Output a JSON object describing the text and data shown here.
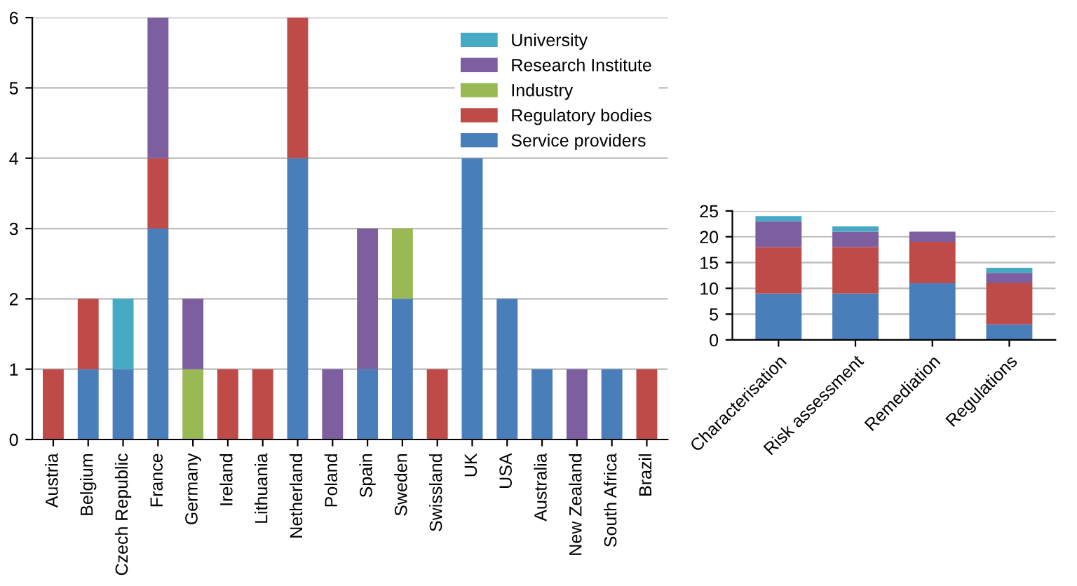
{
  "chart_data": [
    {
      "type": "bar",
      "stacked": true,
      "categories": [
        "Austria",
        "Belgium",
        "Czech Republic",
        "France",
        "Germany",
        "Ireland",
        "Lithuania",
        "Netherland",
        "Poland",
        "Spain",
        "Sweden",
        "Swissland",
        "UK",
        "USA",
        "Australia",
        "New Zealand",
        "South Africa",
        "Brazil"
      ],
      "series": [
        {
          "name": "Service providers",
          "color": "#4a7ebb",
          "values": [
            0,
            1,
            1,
            3,
            0,
            0,
            0,
            4,
            0,
            1,
            2,
            0,
            4,
            2,
            1,
            0,
            1,
            0
          ]
        },
        {
          "name": "Regulatory bodies",
          "color": "#be4b48",
          "values": [
            1,
            1,
            0,
            1,
            0,
            1,
            1,
            2,
            0,
            0,
            0,
            1,
            0,
            0,
            0,
            0,
            0,
            1
          ]
        },
        {
          "name": "Industry",
          "color": "#98b954",
          "values": [
            0,
            0,
            0,
            0,
            1,
            0,
            0,
            0,
            0,
            0,
            1,
            0,
            0,
            0,
            0,
            0,
            0,
            0
          ]
        },
        {
          "name": "Research Institute",
          "color": "#7d5fa0",
          "values": [
            0,
            0,
            0,
            2,
            1,
            0,
            0,
            0,
            1,
            2,
            0,
            0,
            0,
            0,
            0,
            1,
            0,
            0
          ]
        },
        {
          "name": "University",
          "color": "#46aac5",
          "values": [
            0,
            0,
            1,
            0,
            0,
            0,
            0,
            0,
            0,
            0,
            0,
            0,
            0,
            0,
            0,
            0,
            0,
            0
          ]
        }
      ],
      "ylim": [
        0,
        6
      ],
      "yticks": [
        0,
        1,
        2,
        3,
        4,
        5,
        6
      ],
      "grid": "y",
      "legend": "top right"
    },
    {
      "type": "bar",
      "stacked": true,
      "categories": [
        "Characterisation",
        "Risk assessment",
        "Remediation",
        "Regulations"
      ],
      "series": [
        {
          "color": "#4a7ebb",
          "values": [
            9,
            9,
            11,
            3
          ]
        },
        {
          "color": "#be4b48",
          "values": [
            9,
            9,
            8,
            8
          ]
        },
        {
          "color": "#7d5fa0",
          "values": [
            5,
            3,
            2,
            2
          ]
        },
        {
          "color": "#46aac5",
          "values": [
            1,
            1,
            0,
            1
          ]
        }
      ],
      "ylim": [
        0,
        25
      ],
      "yticks": [
        0,
        5,
        10,
        15,
        20,
        25
      ],
      "grid": "y",
      "legend": false
    }
  ]
}
